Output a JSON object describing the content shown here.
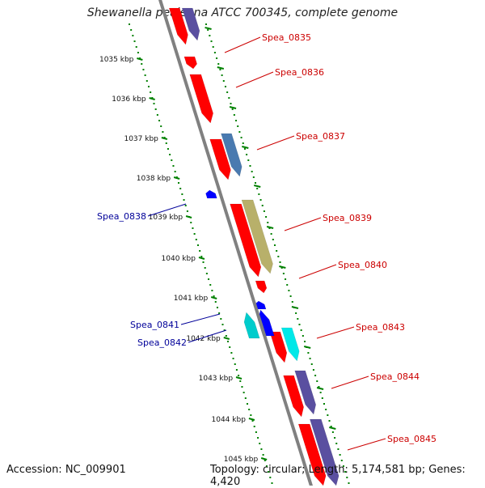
{
  "title": "Shewanella pealeana ATCC 700345, complete genome",
  "footer": {
    "accession": "Accession: NC_009901",
    "summary": "Topology: circular; Length: 5,174,581 bp; Genes: 4,420"
  },
  "colors": {
    "forward_strand": "#ff0000",
    "reverse_strand": "#0000ff",
    "backbone": "#808080",
    "ticks": "#008000",
    "forward_label": "#cc0000",
    "reverse_label": "#000099"
  },
  "kbp_ticks": [
    "1035 kbp",
    "1036 kbp",
    "1037 kbp",
    "1038 kbp",
    "1039 kbp",
    "1040 kbp",
    "1041 kbp",
    "1042 kbp",
    "1043 kbp",
    "1044 kbp",
    "1045 kbp"
  ],
  "genes": [
    {
      "label": "Spea_0835",
      "strand": "forward",
      "color": "#ff0000"
    },
    {
      "label": "Spea_0836",
      "strand": "forward",
      "color": "#ff0000"
    },
    {
      "label": "Spea_0837",
      "strand": "forward",
      "color": "#ff0000"
    },
    {
      "label": "Spea_0838",
      "strand": "reverse",
      "color": "#0000ff"
    },
    {
      "label": "Spea_0839",
      "strand": "forward",
      "color": "#ff0000"
    },
    {
      "label": "Spea_0840",
      "strand": "forward",
      "color": "#ff0000"
    },
    {
      "label": "Spea_0841",
      "strand": "reverse",
      "color": "#00cccc"
    },
    {
      "label": "Spea_0842",
      "strand": "reverse",
      "color": "#0000ff"
    },
    {
      "label": "Spea_0843",
      "strand": "forward",
      "color": "#ff0000"
    },
    {
      "label": "Spea_0844",
      "strand": "forward",
      "color": "#ff0000"
    },
    {
      "label": "Spea_0845",
      "strand": "forward",
      "color": "#ff0000"
    }
  ]
}
